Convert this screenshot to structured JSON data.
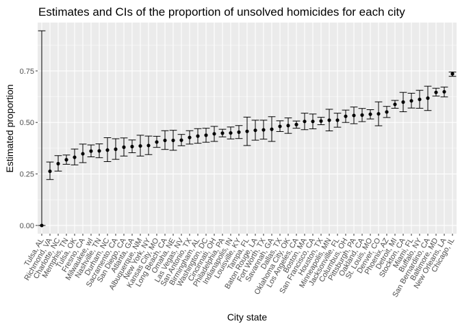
{
  "chart_data": {
    "type": "errorbar",
    "title": "Estimates and CIs of the proportion of unsolved homicides for each city",
    "xlabel": "City state",
    "ylabel": "Estimated proportion",
    "ylim": [
      -0.04,
      0.985
    ],
    "yticks": [
      0.0,
      0.25,
      0.5,
      0.75
    ],
    "ytick_labels": [
      "0.00",
      "0.25",
      "0.50",
      "0.75"
    ],
    "grid": true,
    "colors": {
      "panel": "#ebebeb",
      "grid_major": "#ffffff",
      "point": "#000000",
      "text": "#4d4d4d"
    },
    "categories": [
      "Tulsa, AL",
      "Richmond, VA",
      "Charlotte, NC",
      "Memphis, TN",
      "Tulsa, OK",
      "Fresno, CA",
      "Milwaukee, wI",
      "Nashville, TN",
      "Durham, NC",
      "Sacramento, CA",
      "San Diego, CA",
      "Atlanta, GA",
      "Albuquerque, NM",
      "New York, NY",
      "Kansas City, MO",
      "Long Beach, CA",
      "Omaha, NE",
      "Las Vegas, NV",
      "San Antonio, TX",
      "Birmingham, AL",
      "Washington, DC",
      "Cincinnati, OH",
      "Philadelphia, PA",
      "Indianapolis, IN",
      "Louisville, KY",
      "Tampa, FL",
      "Baton Rouge, LA",
      "Fort Worth, TX",
      "Savannah, GA",
      "Dallas, TX",
      "Oklahoma City, OK",
      "Los Angeles, CA",
      "Boston, MA",
      "San Francisco, CA",
      "Houston, TX",
      "Minneapolis, MN",
      "Jacksonville, FL",
      "Columbus, OH",
      "Pittsburgh, PA",
      "Oakland, CA",
      "St. Louis, MO",
      "Denver, CO",
      "Phoenix, AZ",
      "Detroit, MI",
      "Stockton, CA",
      "Miami, FL",
      "Buffalo, NY",
      "San Bernardino, CA",
      "Baltimore, MD",
      "New Orleans, LA",
      "Chicago, IL"
    ],
    "estimate": [
      0.0,
      0.263,
      0.3,
      0.319,
      0.331,
      0.348,
      0.361,
      0.362,
      0.366,
      0.37,
      0.38,
      0.383,
      0.386,
      0.388,
      0.405,
      0.413,
      0.413,
      0.414,
      0.427,
      0.434,
      0.438,
      0.445,
      0.448,
      0.449,
      0.453,
      0.457,
      0.462,
      0.464,
      0.467,
      0.481,
      0.485,
      0.49,
      0.505,
      0.505,
      0.507,
      0.511,
      0.511,
      0.53,
      0.534,
      0.536,
      0.54,
      0.542,
      0.551,
      0.588,
      0.599,
      0.605,
      0.612,
      0.618,
      0.646,
      0.649,
      0.736
    ],
    "lower": [
      0.0,
      0.223,
      0.264,
      0.297,
      0.294,
      0.305,
      0.333,
      0.329,
      0.31,
      0.321,
      0.337,
      0.353,
      0.337,
      0.344,
      0.379,
      0.369,
      0.365,
      0.387,
      0.395,
      0.399,
      0.404,
      0.408,
      0.43,
      0.42,
      0.422,
      0.388,
      0.414,
      0.419,
      0.408,
      0.456,
      0.447,
      0.472,
      0.465,
      0.469,
      0.489,
      0.459,
      0.477,
      0.5,
      0.494,
      0.504,
      0.517,
      0.484,
      0.524,
      0.569,
      0.552,
      0.57,
      0.569,
      0.558,
      0.628,
      0.624,
      0.724
    ],
    "upper": [
      0.945,
      0.308,
      0.339,
      0.342,
      0.371,
      0.395,
      0.391,
      0.396,
      0.426,
      0.421,
      0.425,
      0.415,
      0.438,
      0.434,
      0.433,
      0.46,
      0.462,
      0.442,
      0.46,
      0.47,
      0.472,
      0.481,
      0.467,
      0.478,
      0.485,
      0.526,
      0.511,
      0.511,
      0.528,
      0.508,
      0.522,
      0.507,
      0.545,
      0.541,
      0.525,
      0.564,
      0.545,
      0.56,
      0.575,
      0.568,
      0.562,
      0.6,
      0.578,
      0.607,
      0.646,
      0.642,
      0.656,
      0.676,
      0.666,
      0.672,
      0.745
    ]
  }
}
